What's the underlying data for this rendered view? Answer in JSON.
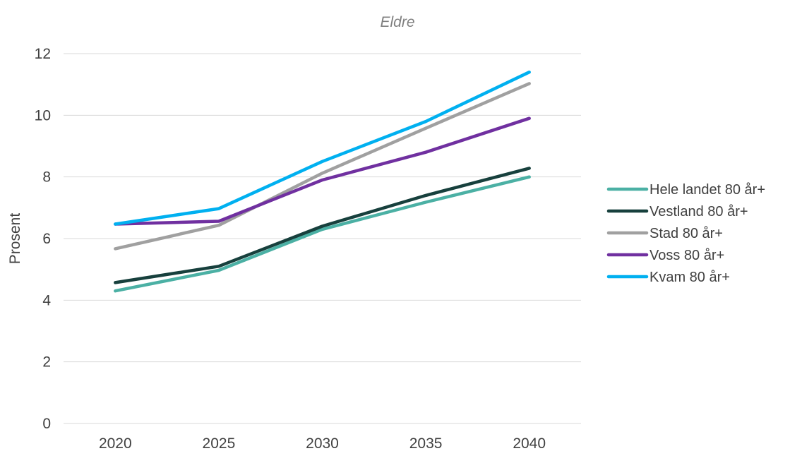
{
  "chart_data": {
    "type": "line",
    "title": "Eldre",
    "xlabel": "",
    "ylabel": "Prosent",
    "ylim": [
      0,
      12
    ],
    "yticks": [
      0,
      2,
      4,
      6,
      8,
      10,
      12
    ],
    "categories": [
      "2020",
      "2025",
      "2030",
      "2035",
      "2040"
    ],
    "grid": true,
    "legend_position": "right",
    "series": [
      {
        "name": "Hele landet 80 år+",
        "color": "#4bb0a4",
        "values": [
          4.3,
          4.97,
          6.3,
          7.18,
          8.0
        ]
      },
      {
        "name": "Vestland 80 år+",
        "color": "#17403d",
        "values": [
          4.57,
          5.1,
          6.4,
          7.4,
          8.28
        ]
      },
      {
        "name": "Stad 80 år+",
        "color": "#a0a0a0",
        "values": [
          5.67,
          6.43,
          8.12,
          9.58,
          11.03
        ]
      },
      {
        "name": "Voss 80 år+",
        "color": "#7030a0",
        "values": [
          6.47,
          6.56,
          7.9,
          8.8,
          9.9
        ]
      },
      {
        "name": "Kvam 80 år+",
        "color": "#00b0f0",
        "values": [
          6.47,
          6.97,
          8.5,
          9.8,
          11.4
        ]
      }
    ]
  }
}
